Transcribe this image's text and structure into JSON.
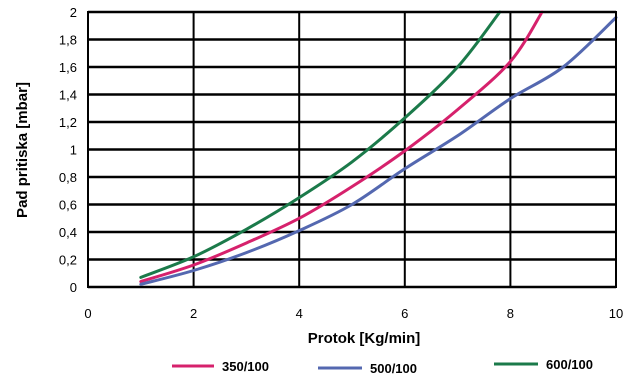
{
  "chart_data": {
    "type": "line",
    "xlabel": "Protok [Kg/min]",
    "ylabel": "Pad pritiska [mbar]",
    "xlim": [
      0,
      10
    ],
    "ylim": [
      0,
      2
    ],
    "xticks": [
      "0",
      "2",
      "4",
      "6",
      "8",
      "10"
    ],
    "yticks": [
      "0",
      "0,2",
      "0,4",
      "0,6",
      "0,8",
      "1",
      "1,2",
      "1,4",
      "1,6",
      "1,8",
      "2"
    ],
    "grid": true,
    "legend_position": "bottom",
    "series": [
      {
        "name": "350/100",
        "color": "#d6216c",
        "x": [
          1.0,
          2.0,
          3.0,
          4.0,
          5.0,
          6.0,
          7.0,
          8.0,
          8.6
        ],
        "y": [
          0.04,
          0.16,
          0.32,
          0.5,
          0.73,
          0.99,
          1.29,
          1.64,
          2.0
        ]
      },
      {
        "name": "500/100",
        "color": "#5468b0",
        "x": [
          1.0,
          2.0,
          3.0,
          4.0,
          5.0,
          6.0,
          7.0,
          8.0,
          9.0,
          10.0
        ],
        "y": [
          0.02,
          0.12,
          0.25,
          0.41,
          0.6,
          0.86,
          1.1,
          1.37,
          1.6,
          1.96
        ]
      },
      {
        "name": "600/100",
        "color": "#1b7a4a",
        "x": [
          1.0,
          2.0,
          3.0,
          4.0,
          5.0,
          6.0,
          7.0,
          7.8
        ],
        "y": [
          0.07,
          0.22,
          0.42,
          0.65,
          0.91,
          1.23,
          1.6,
          2.0
        ]
      }
    ]
  }
}
